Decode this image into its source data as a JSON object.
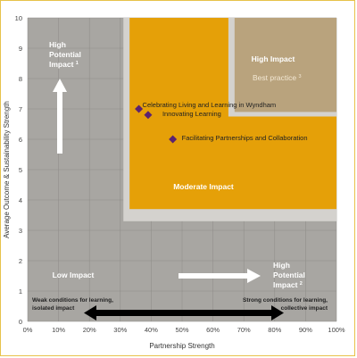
{
  "chart_data": {
    "type": "scatter",
    "xlabel": "Partnership Strength",
    "ylabel": "Average Outcome & Sustainability Strength",
    "xlim": [
      0,
      100
    ],
    "ylim": [
      0,
      10
    ],
    "x_ticks": [
      "0%",
      "10%",
      "20%",
      "30%",
      "40%",
      "50%",
      "60%",
      "70%",
      "80%",
      "90%",
      "100%"
    ],
    "y_ticks": [
      "0",
      "1",
      "2",
      "3",
      "4",
      "5",
      "6",
      "7",
      "8",
      "9",
      "10"
    ],
    "grid": true,
    "zones": {
      "high_potential_impact_1": "High Potential Impact",
      "high_potential_impact_1_note": "1",
      "high_impact": "High Impact",
      "best_practice": "Best practice",
      "best_practice_note": "3",
      "moderate_impact": "Moderate Impact",
      "low_impact": "Low Impact",
      "high_potential_impact_2": "High Potential Impact",
      "high_potential_impact_2_note": "2"
    },
    "conditions": {
      "weak_line1": "Weak conditions for learning,",
      "weak_line2": "isolated impact",
      "strong_line1": "Strong conditions for learning,",
      "strong_line2": "collective impact"
    },
    "points": [
      {
        "label": "Celebrating Living and Learning in Wyndham",
        "x": 36,
        "y": 7.0
      },
      {
        "label": "Innovating Learning",
        "x": 39,
        "y": 6.8
      },
      {
        "label": "Facilitating Partnerships and Collaboration",
        "x": 47,
        "y": 6.0
      }
    ],
    "colors": {
      "plot_bg": "#a8a6a2",
      "orange": "#e5a008",
      "tan": "#b9a37d",
      "zone_border": "#d4d2ce",
      "marker": "#5b2370",
      "arrow_white": "#ffffff",
      "arrow_black": "#000000"
    }
  }
}
